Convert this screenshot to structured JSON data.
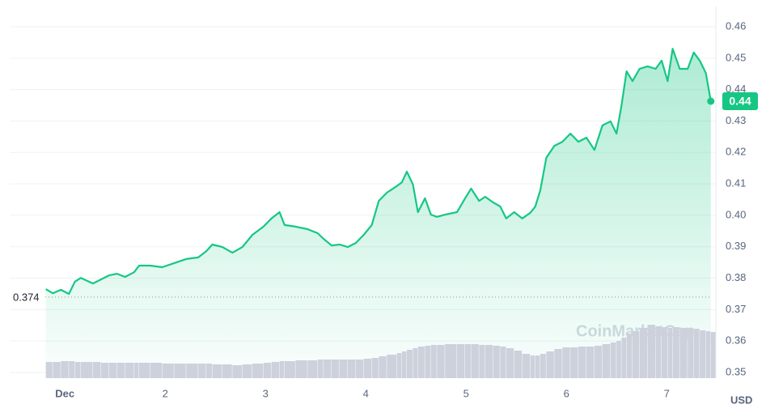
{
  "chart_data": {
    "type": "line",
    "x": [
      0.81,
      0.88,
      0.96,
      1.04,
      1.1,
      1.16,
      1.28,
      1.36,
      1.44,
      1.52,
      1.6,
      1.69,
      1.74,
      1.85,
      1.97,
      2.09,
      2.21,
      2.33,
      2.41,
      2.47,
      2.57,
      2.67,
      2.77,
      2.87,
      2.98,
      3.06,
      3.14,
      3.19,
      3.3,
      3.42,
      3.52,
      3.58,
      3.66,
      3.74,
      3.82,
      3.9,
      3.98,
      4.06,
      4.13,
      4.21,
      4.31,
      4.36,
      4.41,
      4.47,
      4.52,
      4.59,
      4.65,
      4.71,
      4.79,
      4.91,
      4.99,
      5.05,
      5.13,
      5.19,
      5.27,
      5.34,
      5.4,
      5.48,
      5.56,
      5.64,
      5.69,
      5.74,
      5.8,
      5.88,
      5.96,
      6.04,
      6.12,
      6.2,
      6.28,
      6.36,
      6.44,
      6.5,
      6.55,
      6.6,
      6.66,
      6.73,
      6.81,
      6.89,
      6.95,
      7.01,
      7.06,
      7.13,
      7.21,
      7.27,
      7.33,
      7.39,
      7.44
    ],
    "series": [
      {
        "color": "#16c784",
        "values": [
          0.3765,
          0.3752,
          0.3763,
          0.375,
          0.3789,
          0.3801,
          0.3783,
          0.3796,
          0.3809,
          0.3814,
          0.3804,
          0.3819,
          0.384,
          0.384,
          0.3835,
          0.3848,
          0.3861,
          0.3866,
          0.3886,
          0.3907,
          0.3899,
          0.3881,
          0.3899,
          0.3938,
          0.3964,
          0.399,
          0.401,
          0.3969,
          0.3964,
          0.3956,
          0.3943,
          0.3925,
          0.3904,
          0.3907,
          0.3899,
          0.3912,
          0.3938,
          0.3969,
          0.4046,
          0.4072,
          0.4093,
          0.4105,
          0.4139,
          0.4098,
          0.401,
          0.4054,
          0.4002,
          0.3995,
          0.4002,
          0.401,
          0.4054,
          0.4085,
          0.4046,
          0.4059,
          0.4041,
          0.4028,
          0.399,
          0.401,
          0.399,
          0.4008,
          0.4028,
          0.408,
          0.4183,
          0.4221,
          0.4234,
          0.426,
          0.4234,
          0.4247,
          0.4208,
          0.4286,
          0.4299,
          0.426,
          0.435,
          0.4458,
          0.4427,
          0.4466,
          0.4474,
          0.4466,
          0.4492,
          0.4427,
          0.453,
          0.4466,
          0.4466,
          0.4518,
          0.4492,
          0.4453,
          0.4363
        ]
      },
      {
        "type": "bar",
        "axis": "y2",
        "color": "#cdd1dc",
        "values": [
          20,
          20,
          21,
          21,
          20,
          20,
          20,
          19,
          19,
          19,
          19,
          19,
          19,
          19,
          18,
          18,
          18,
          18,
          18,
          17,
          17,
          16,
          17,
          18,
          19,
          20,
          21,
          21,
          22,
          22,
          23,
          23,
          23,
          23,
          23,
          23,
          24,
          25,
          27,
          29,
          31,
          33,
          35,
          37,
          39,
          40,
          41,
          41,
          42,
          42,
          42,
          42,
          41,
          41,
          40,
          39,
          37,
          34,
          30,
          28,
          28,
          30,
          33,
          36,
          38,
          38,
          39,
          39,
          40,
          42,
          44,
          46,
          50,
          55,
          58,
          62,
          66,
          64,
          63,
          62,
          63,
          62,
          62,
          61,
          59,
          58,
          57
        ]
      }
    ],
    "xlim": [
      0.45,
      7.45
    ],
    "xticks": [
      {
        "value": 1,
        "label": "Dec"
      },
      2,
      3,
      4,
      5,
      6,
      7
    ],
    "ylim": [
      0.35,
      0.46
    ],
    "yticks": [
      0.35,
      0.36,
      0.37,
      0.38,
      0.39,
      {
        "value": 0.4,
        "label": "0.40"
      },
      0.41,
      0.42,
      0.43,
      0.44,
      0.45,
      0.46
    ],
    "y2lim": [
      0,
      100
    ],
    "grid": true,
    "y_unit": "USD",
    "reference_line": 0.374,
    "current_price": {
      "value": 0.4363,
      "label": "0.44"
    },
    "watermark": "CoinMarketCap"
  }
}
